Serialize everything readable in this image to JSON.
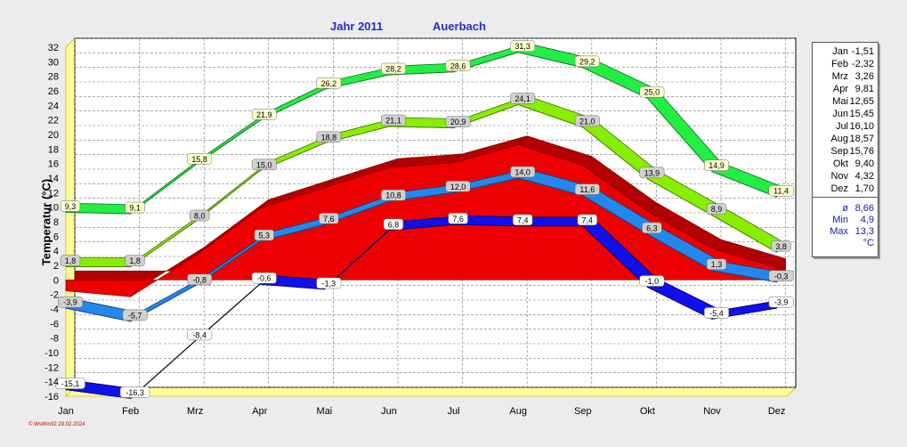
{
  "header": {
    "year_title": "Jahr  2011",
    "location": "Auerbach"
  },
  "footer": {
    "credit": "© WsWin32  29.02.2024"
  },
  "chart_data": {
    "type": "line",
    "title": "Jahr  2011   Auerbach",
    "ylabel": "Temperatur  (°C)",
    "xlabel": "",
    "ylim": [
      -16,
      32
    ],
    "grid": true,
    "categories": [
      "Jan",
      "Feb",
      "Mrz",
      "Apr",
      "Mai",
      "Jun",
      "Jul",
      "Aug",
      "Sep",
      "Okt",
      "Nov",
      "Dez"
    ],
    "yticks": [
      "32",
      "30",
      "28",
      "26",
      "24",
      "22",
      "20",
      "18",
      "16",
      "14",
      "12",
      "10",
      "8",
      "6",
      "4",
      "2",
      "0",
      "-2",
      "-4",
      "-6",
      "-8",
      "-10",
      "-12",
      "-14",
      "-16"
    ],
    "series": [
      {
        "name": "",
        "color": "#22ee44",
        "label_color": "#ffffd0",
        "values": [
          9.3,
          9.1,
          15.8,
          21.9,
          26.2,
          28.2,
          28.6,
          31.3,
          29.2,
          25.0,
          14.9,
          11.4
        ],
        "labels": [
          "9,3",
          "9,1",
          "15,8",
          "21,9",
          "26,2",
          "28,2",
          "28,6",
          "31,3",
          "29,2",
          "25,0",
          "14,9",
          "11,4"
        ]
      },
      {
        "name": "",
        "color": "#88ee00",
        "label_color": "#d0d0d0",
        "values": [
          1.8,
          1.8,
          8.0,
          15.0,
          18.8,
          21.1,
          20.9,
          24.1,
          21.0,
          13.9,
          8.9,
          3.8
        ],
        "labels": [
          "1,8",
          "1,8",
          "8,0",
          "15,0",
          "18,8",
          "21,1",
          "20,9",
          "24,1",
          "21,0",
          "13,9",
          "8,9",
          "3,8"
        ]
      },
      {
        "name": "",
        "color": "#2288ee",
        "label_color": "#d0d0d0",
        "values": [
          -3.9,
          -5.7,
          -0.8,
          5.3,
          7.6,
          10.8,
          12.0,
          14.0,
          11.6,
          6.3,
          1.3,
          -0.3
        ],
        "labels": [
          "-3,9",
          "-5,7",
          "-0,8",
          "5,3",
          "7,6",
          "10,8",
          "12,0",
          "14,0",
          "11,6",
          "6,3",
          "1,3",
          "-0,3"
        ]
      },
      {
        "name": "",
        "color": "#1010ee",
        "label_color": "#ffffff",
        "values": [
          -15.1,
          -16.3,
          -8.4,
          -0.6,
          -1.3,
          6.8,
          7.6,
          7.4,
          7.4,
          -1.0,
          -5.4,
          -3.9
        ],
        "labels": [
          "-15,1",
          "-16,3",
          "-8,4",
          "-0,6",
          "-1,3",
          "6,8",
          "7,6",
          "7,4",
          "7,4",
          "-1,0",
          "-5,4",
          "-3,9"
        ]
      }
    ],
    "mean_area": {
      "color": "#ee0000",
      "values": [
        -1.51,
        -2.32,
        3.26,
        9.81,
        12.65,
        15.45,
        16.1,
        18.57,
        15.76,
        9.4,
        4.32,
        1.7
      ]
    },
    "legend": {
      "placement": "right",
      "months": [
        {
          "m": "Jan",
          "v": "-1,51"
        },
        {
          "m": "Feb",
          "v": "-2,32"
        },
        {
          "m": "Mrz",
          "v": "3,26"
        },
        {
          "m": "Apr",
          "v": "9,81"
        },
        {
          "m": "Mai",
          "v": "12,65"
        },
        {
          "m": "Jun",
          "v": "15,45"
        },
        {
          "m": "Jul",
          "v": "16,10"
        },
        {
          "m": "Aug",
          "v": "18,57"
        },
        {
          "m": "Sep",
          "v": "15,76"
        },
        {
          "m": "Okt",
          "v": "9,40"
        },
        {
          "m": "Nov",
          "v": "4,32"
        },
        {
          "m": "Dez",
          "v": "1,70"
        }
      ],
      "stats": [
        {
          "m": "ø",
          "v": "8,66"
        },
        {
          "m": "Min",
          "v": "4,9"
        },
        {
          "m": "Max",
          "v": "13,3"
        },
        {
          "m": "",
          "v": "°C"
        }
      ]
    }
  }
}
